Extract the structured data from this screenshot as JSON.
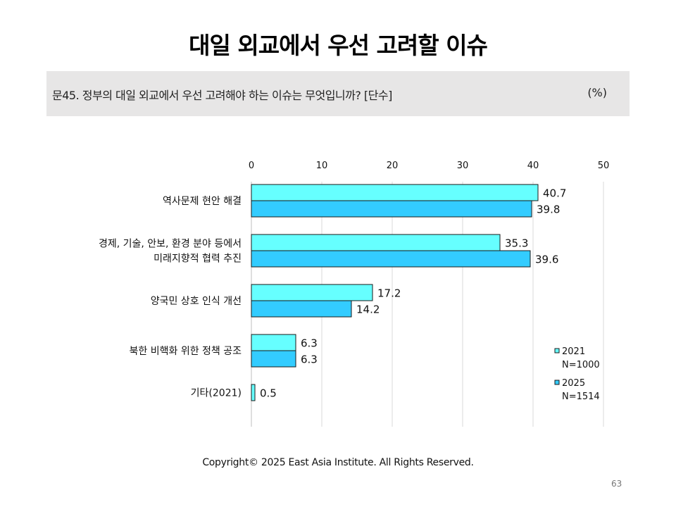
{
  "page": {
    "title": "대일 외교에서 우선 고려할 이슈",
    "question": "문45. 정부의 대일 외교에서 우선 고려해야 하는 이슈는 무엇입니까? [단수]",
    "unit": "(%)",
    "copyright": "Copyright© 2025 East Asia Institute. All Rights Reserved.",
    "page_number": "63"
  },
  "chart_data": {
    "type": "bar",
    "orientation": "horizontal",
    "xlim": [
      0,
      50
    ],
    "x_ticks": [
      "0",
      "10",
      "20",
      "30",
      "40",
      "50"
    ],
    "grid": true,
    "legend_position": "bottom-right",
    "categories": [
      [
        "역사문제 현안 해결"
      ],
      [
        "경제, 기술, 안보, 환경 분야 등에서",
        "미래지향적 협력 추진"
      ],
      [
        "양국민 상호 인식 개선"
      ],
      [
        "북한 비핵화 위한 정책 공조"
      ],
      [
        "기타(2021)"
      ]
    ],
    "series": [
      {
        "name": "2021",
        "legend_lines": [
          "2021",
          "N=1000"
        ],
        "color": "#66ffff",
        "values": [
          40.7,
          35.3,
          17.2,
          6.3,
          0.5
        ],
        "labels": [
          "40.7",
          "35.3",
          "17.2",
          "6.3",
          "0.5"
        ]
      },
      {
        "name": "2025",
        "legend_lines": [
          "2025",
          "N=1514"
        ],
        "color": "#33ccff",
        "values": [
          39.8,
          39.6,
          14.2,
          6.3,
          null
        ],
        "labels": [
          "39.8",
          "39.6",
          "14.2",
          "6.3",
          null
        ]
      }
    ]
  }
}
